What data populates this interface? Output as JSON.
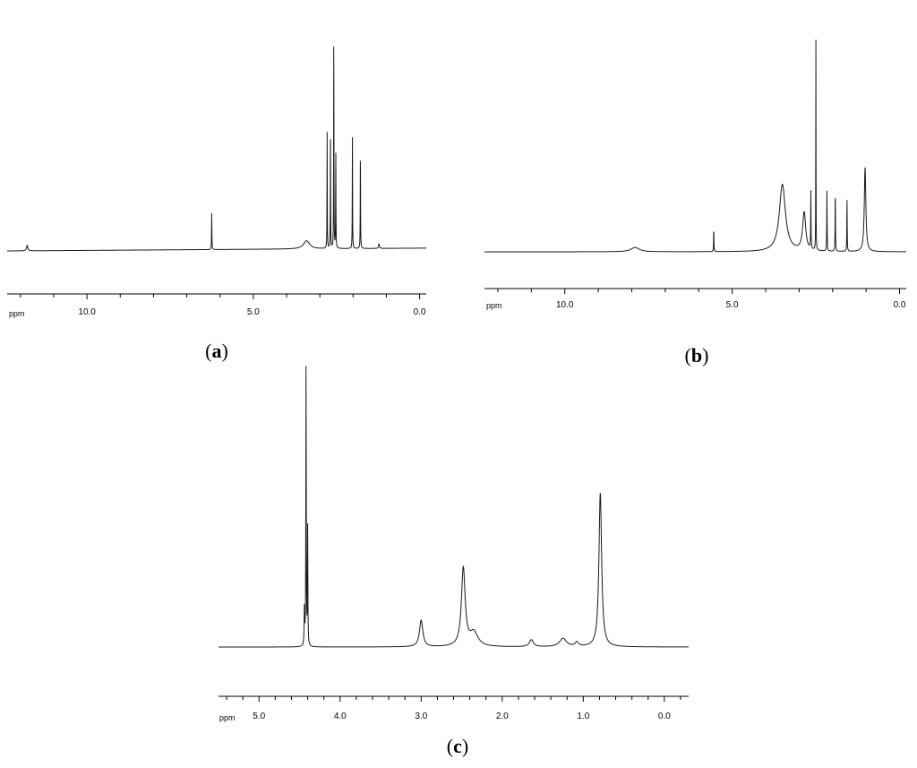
{
  "chart_data": [
    {
      "id": "a",
      "type": "line",
      "panel_label": {
        "open": "(",
        "letter": "a",
        "close": ")"
      },
      "xlabel": "ppm",
      "x_reversed": true,
      "xlim": [
        12.4,
        -0.2
      ],
      "ylim": [
        -0.05,
        1.0
      ],
      "ticks": [
        {
          "value": 10.0,
          "label": "10.0"
        },
        {
          "value": 5.0,
          "label": "5.0"
        },
        {
          "value": 0.0,
          "label": "0.0"
        }
      ],
      "minor_tick_step": 1.0,
      "baseline": {
        "start": 0.0,
        "end": 0.012
      },
      "peaks": [
        {
          "x": 11.8,
          "h": 0.024,
          "w": 0.045
        },
        {
          "x": 6.25,
          "h": 0.155,
          "w": 0.012
        },
        {
          "x": 3.4,
          "h": 0.035,
          "w": 0.22
        },
        {
          "x": 2.78,
          "h": 0.5,
          "w": 0.01
        },
        {
          "x": 2.68,
          "h": 0.5,
          "w": 0.01
        },
        {
          "x": 2.58,
          "h": 0.96,
          "w": 0.01
        },
        {
          "x": 2.52,
          "h": 0.43,
          "w": 0.01
        },
        {
          "x": 2.02,
          "h": 0.48,
          "w": 0.01
        },
        {
          "x": 1.78,
          "h": 0.44,
          "w": 0.01
        },
        {
          "x": 1.22,
          "h": 0.02,
          "w": 0.03
        }
      ]
    },
    {
      "id": "b",
      "type": "line",
      "panel_label": {
        "open": "(",
        "letter": "b",
        "close": ")"
      },
      "xlabel": "ppm",
      "x_reversed": true,
      "xlim": [
        12.4,
        -0.2
      ],
      "ylim": [
        -0.05,
        1.0
      ],
      "ticks": [
        {
          "value": 10.0,
          "label": "10.0"
        },
        {
          "value": 5.0,
          "label": "5.0"
        },
        {
          "value": 0.0,
          "label": "0.0"
        }
      ],
      "minor_tick_step": 1.0,
      "baseline": {
        "start": 0.0,
        "end": 0.0
      },
      "peaks": [
        {
          "x": 7.9,
          "h": 0.018,
          "w": 0.3
        },
        {
          "x": 5.55,
          "h": 0.095,
          "w": 0.012
        },
        {
          "x": 3.5,
          "h": 0.28,
          "w": 0.22
        },
        {
          "x": 2.85,
          "h": 0.16,
          "w": 0.11
        },
        {
          "x": 2.65,
          "h": 0.24,
          "w": 0.012
        },
        {
          "x": 2.5,
          "h": 0.9,
          "w": 0.008
        },
        {
          "x": 2.17,
          "h": 0.25,
          "w": 0.012
        },
        {
          "x": 1.92,
          "h": 0.25,
          "w": 0.012
        },
        {
          "x": 1.57,
          "h": 0.22,
          "w": 0.012
        },
        {
          "x": 1.03,
          "h": 0.35,
          "w": 0.055
        }
      ]
    },
    {
      "id": "c",
      "type": "line",
      "panel_label": {
        "open": "(",
        "letter": "c",
        "close": ")"
      },
      "xlabel": "ppm",
      "x_reversed": true,
      "xlim": [
        5.5,
        -0.3
      ],
      "ylim": [
        -0.03,
        1.0
      ],
      "ticks": [
        {
          "value": 5.0,
          "label": "5.0"
        },
        {
          "value": 4.0,
          "label": "4.0"
        },
        {
          "value": 3.0,
          "label": "3.0"
        },
        {
          "value": 2.0,
          "label": "2.0"
        },
        {
          "value": 1.0,
          "label": "1.0"
        },
        {
          "value": 0.0,
          "label": "0.0"
        }
      ],
      "minor_tick_step": 0.2,
      "baseline": {
        "start": 0.0,
        "end": 0.0
      },
      "peaks": [
        {
          "x": 4.44,
          "h": 0.13,
          "w": 0.008
        },
        {
          "x": 4.42,
          "h": 1.0,
          "w": 0.006
        },
        {
          "x": 4.4,
          "h": 0.42,
          "w": 0.006
        },
        {
          "x": 3.0,
          "h": 0.095,
          "w": 0.05
        },
        {
          "x": 2.48,
          "h": 0.28,
          "w": 0.055
        },
        {
          "x": 2.35,
          "h": 0.05,
          "w": 0.12
        },
        {
          "x": 1.64,
          "h": 0.025,
          "w": 0.06
        },
        {
          "x": 1.25,
          "h": 0.03,
          "w": 0.1
        },
        {
          "x": 1.08,
          "h": 0.015,
          "w": 0.05
        },
        {
          "x": 0.79,
          "h": 0.55,
          "w": 0.04
        }
      ]
    }
  ]
}
